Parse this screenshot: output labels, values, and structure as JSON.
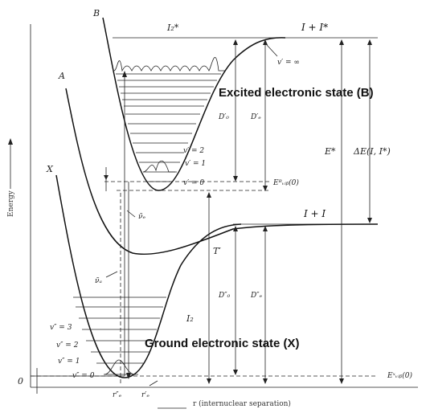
{
  "curves": {
    "excited_B": "B",
    "state_A": "A",
    "ground_X": "X"
  },
  "asymptotes": {
    "upper": "I + I*",
    "lower": "I + I"
  },
  "labels": {
    "i2_star": "I₂*",
    "i2": "I₂",
    "v_prime_inf": "v′ = ∞",
    "v_prime_2": "v′ = 2",
    "v_prime_1": "v′ = 1",
    "v_prime_0": "v′ = 0",
    "v_dprime_3": "v″ = 3",
    "v_dprime_2": "v″ = 2",
    "v_dprime_1": "v″ = 1",
    "v_dprime_0": "v″ = 0",
    "d0_prime": "D′₀",
    "de_prime": "D′ₑ",
    "d0_dprime": "D″₀",
    "de_dprime": "D″ₑ",
    "e_star": "E*",
    "delta_e": "ΔE(I, I*)",
    "t_prime": "T′",
    "e_b_vib": "Eᴮᵥᵢᵦ(0)",
    "e_x_vib": "Eˣᵥᵢᵦ(0)",
    "nu_abs": "ν̃ₐ",
    "nu_em": "ν̃ₑ",
    "re_dprime": "r″ₑ",
    "re_prime": "r′ₑ",
    "zero": "0",
    "y_axis": "Energy",
    "x_axis": "r (internuclear separation)"
  },
  "annotations": {
    "excited": "Excited electronic state (B)",
    "ground": "Ground electronic state (X)"
  }
}
